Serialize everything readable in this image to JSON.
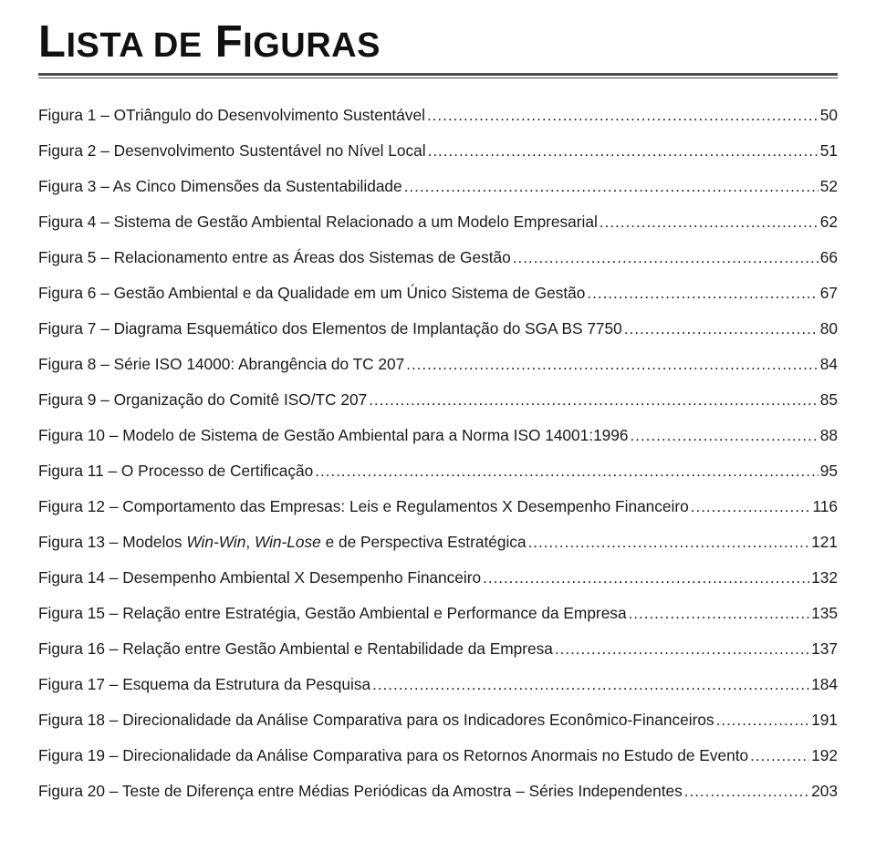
{
  "title_parts": {
    "l": "L",
    "ista_de": "ISTA DE",
    "f": " F",
    "iguras": "IGURAS"
  },
  "entries": [
    {
      "label": "Figura 1 – OTriângulo do Desenvolvimento Sustentável",
      "page": "50"
    },
    {
      "label": "Figura 2 – Desenvolvimento Sustentável no Nível Local",
      "page": "51"
    },
    {
      "label": "Figura 3 – As Cinco Dimensões da Sustentabilidade",
      "page": "52"
    },
    {
      "label": "Figura 4 – Sistema de Gestão Ambiental Relacionado a um Modelo Empresarial",
      "page": "62"
    },
    {
      "label": "Figura 5 – Relacionamento entre as Áreas dos Sistemas de Gestão",
      "page": "66"
    },
    {
      "label": "Figura 6 – Gestão Ambiental e da Qualidade em um Único Sistema de Gestão",
      "page": "67"
    },
    {
      "label": "Figura 7 – Diagrama Esquemático dos Elementos de Implantação do SGA BS 7750",
      "page": "80"
    },
    {
      "label": "Figura 8 – Série ISO 14000: Abrangência do TC 207",
      "page": "84"
    },
    {
      "label": "Figura 9 – Organização do Comitê ISO/TC 207",
      "page": "85"
    },
    {
      "label": "Figura 10 – Modelo de Sistema de Gestão Ambiental para a Norma ISO 14001:1996",
      "page": "88"
    },
    {
      "label": "Figura 11 – O Processo de Certificação",
      "page": "95"
    },
    {
      "label": "Figura 12 – Comportamento das Empresas: Leis e Regulamentos X Desempenho Financeiro",
      "page": "116"
    },
    {
      "label_html": "Figura 13 – Modelos <span class=\"italic\">Win-Win</span>, <span class=\"italic\">Win-Lose</span> e de Perspectiva Estratégica",
      "page": "121"
    },
    {
      "label": "Figura 14 – Desempenho Ambiental X Desempenho Financeiro",
      "page": "132"
    },
    {
      "label": "Figura 15 – Relação entre Estratégia, Gestão Ambiental e Performance da Empresa",
      "page": "135"
    },
    {
      "label": "Figura 16 – Relação entre Gestão Ambiental e Rentabilidade da Empresa",
      "page": "137"
    },
    {
      "label": "Figura 17 – Esquema da Estrutura da Pesquisa",
      "page": "184"
    },
    {
      "label": "Figura 18 – Direcionalidade da Análise Comparativa para os Indicadores Econômico-Financeiros",
      "page": "191"
    },
    {
      "label": "Figura 19 – Direcionalidade da Análise Comparativa para os Retornos Anormais no Estudo de Evento",
      "page": "192"
    },
    {
      "label": "Figura 20 – Teste de Diferença entre Médias Periódicas da Amostra – Séries Independentes",
      "page": "203"
    }
  ]
}
